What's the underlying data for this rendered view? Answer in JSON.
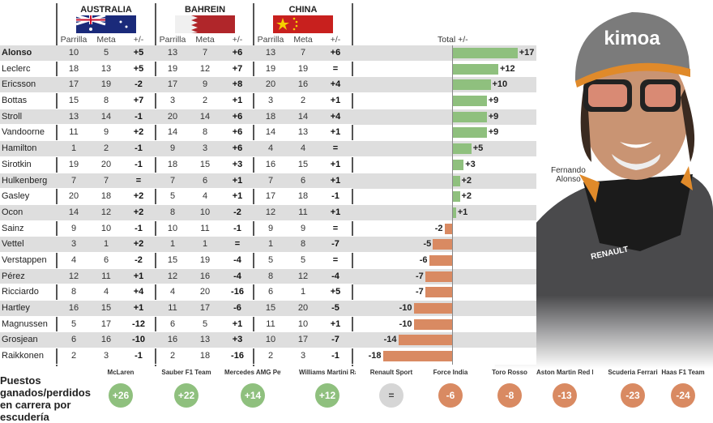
{
  "races": [
    {
      "name": "AUSTRALIA"
    },
    {
      "name": "BAHREIN"
    },
    {
      "name": "CHINA"
    }
  ],
  "subheaders": [
    "Parrilla",
    "Meta",
    "+/-"
  ],
  "total_header": "Total +/-",
  "photo_caption": {
    "line1": "Fernando",
    "line2": "Alonso",
    "cap_text": "kimoa",
    "jacket_text": "RENAULT"
  },
  "colors": {
    "positive": "#8fc07e",
    "negative": "#d98a62",
    "neutral": "#d6d6d6"
  },
  "chart_data": {
    "type": "bar",
    "title": "",
    "xlabel": "",
    "ylabel": "Total +/-",
    "xlim": [
      -18,
      17
    ],
    "drivers": [
      {
        "name": "Alonso",
        "bold": true,
        "aus": [
          "10",
          "5",
          "+5"
        ],
        "bah": [
          "13",
          "7",
          "+6"
        ],
        "chn": [
          "13",
          "7",
          "+6"
        ],
        "total": 17
      },
      {
        "name": "Leclerc",
        "aus": [
          "18",
          "13",
          "+5"
        ],
        "bah": [
          "19",
          "12",
          "+7"
        ],
        "chn": [
          "19",
          "19",
          "="
        ],
        "total": 12
      },
      {
        "name": "Ericsson",
        "aus": [
          "17",
          "19",
          "-2"
        ],
        "bah": [
          "17",
          "9",
          "+8"
        ],
        "chn": [
          "20",
          "16",
          "+4"
        ],
        "total": 10
      },
      {
        "name": "Bottas",
        "aus": [
          "15",
          "8",
          "+7"
        ],
        "bah": [
          "3",
          "2",
          "+1"
        ],
        "chn": [
          "3",
          "2",
          "+1"
        ],
        "total": 9
      },
      {
        "name": "Stroll",
        "aus": [
          "13",
          "14",
          "-1"
        ],
        "bah": [
          "20",
          "14",
          "+6"
        ],
        "chn": [
          "18",
          "14",
          "+4"
        ],
        "total": 9
      },
      {
        "name": "Vandoorne",
        "aus": [
          "11",
          "9",
          "+2"
        ],
        "bah": [
          "14",
          "8",
          "+6"
        ],
        "chn": [
          "14",
          "13",
          "+1"
        ],
        "total": 9
      },
      {
        "name": "Hamilton",
        "aus": [
          "1",
          "2",
          "-1"
        ],
        "bah": [
          "9",
          "3",
          "+6"
        ],
        "chn": [
          "4",
          "4",
          "="
        ],
        "total": 5
      },
      {
        "name": "Sirotkin",
        "aus": [
          "19",
          "20",
          "-1"
        ],
        "bah": [
          "18",
          "15",
          "+3"
        ],
        "chn": [
          "16",
          "15",
          "+1"
        ],
        "total": 3
      },
      {
        "name": "Hulkenberg",
        "aus": [
          "7",
          "7",
          "="
        ],
        "bah": [
          "7",
          "6",
          "+1"
        ],
        "chn": [
          "7",
          "6",
          "+1"
        ],
        "total": 2
      },
      {
        "name": "Gasley",
        "aus": [
          "20",
          "18",
          "+2"
        ],
        "bah": [
          "5",
          "4",
          "+1"
        ],
        "chn": [
          "17",
          "18",
          "-1"
        ],
        "total": 2
      },
      {
        "name": "Ocon",
        "aus": [
          "14",
          "12",
          "+2"
        ],
        "bah": [
          "8",
          "10",
          "-2"
        ],
        "chn": [
          "12",
          "11",
          "+1"
        ],
        "total": 1
      },
      {
        "name": "Sainz",
        "aus": [
          "9",
          "10",
          "-1"
        ],
        "bah": [
          "10",
          "11",
          "-1"
        ],
        "chn": [
          "9",
          "9",
          "="
        ],
        "total": -2
      },
      {
        "name": "Vettel",
        "aus": [
          "3",
          "1",
          "+2"
        ],
        "bah": [
          "1",
          "1",
          "="
        ],
        "chn": [
          "1",
          "8",
          "-7"
        ],
        "total": -5
      },
      {
        "name": "Verstappen",
        "aus": [
          "4",
          "6",
          "-2"
        ],
        "bah": [
          "15",
          "19",
          "-4"
        ],
        "chn": [
          "5",
          "5",
          "="
        ],
        "total": -6
      },
      {
        "name": "Pérez",
        "aus": [
          "12",
          "11",
          "+1"
        ],
        "bah": [
          "12",
          "16",
          "-4"
        ],
        "chn": [
          "8",
          "12",
          "-4"
        ],
        "total": -7
      },
      {
        "name": "Ricciardo",
        "aus": [
          "8",
          "4",
          "+4"
        ],
        "bah": [
          "4",
          "20",
          "-16"
        ],
        "chn": [
          "6",
          "1",
          "+5"
        ],
        "total": -7
      },
      {
        "name": "Hartley",
        "aus": [
          "16",
          "15",
          "+1"
        ],
        "bah": [
          "11",
          "17",
          "-6"
        ],
        "chn": [
          "15",
          "20",
          "-5"
        ],
        "total": -10
      },
      {
        "name": "Magnussen",
        "aus": [
          "5",
          "17",
          "-12"
        ],
        "bah": [
          "6",
          "5",
          "+1"
        ],
        "chn": [
          "11",
          "10",
          "+1"
        ],
        "total": -10
      },
      {
        "name": "Grosjean",
        "aus": [
          "6",
          "16",
          "-10"
        ],
        "bah": [
          "16",
          "13",
          "+3"
        ],
        "chn": [
          "10",
          "17",
          "-7"
        ],
        "total": -14
      },
      {
        "name": "Raikkonen",
        "aus": [
          "2",
          "3",
          "-1"
        ],
        "bah": [
          "2",
          "18",
          "-16"
        ],
        "chn": [
          "2",
          "3",
          "-1"
        ],
        "total": -18
      }
    ]
  },
  "footer": {
    "title": "Puestos ganados/perdidos en carrera por escudería",
    "teams": [
      {
        "logo": "McLaren",
        "value": "+26",
        "sign": 1
      },
      {
        "logo": "Sauber F1 Team",
        "value": "+22",
        "sign": 1
      },
      {
        "logo": "Mercedes AMG Petronas",
        "value": "+14",
        "sign": 1
      },
      {
        "logo": "Williams Martini Racing",
        "value": "+12",
        "sign": 1
      },
      {
        "logo": "Renault Sport",
        "value": "=",
        "sign": 0
      },
      {
        "logo": "Force India",
        "value": "-6",
        "sign": -1
      },
      {
        "logo": "Toro Rosso",
        "value": "-8",
        "sign": -1
      },
      {
        "logo": "Aston Martin Red Bull Racing",
        "value": "-13",
        "sign": -1
      },
      {
        "logo": "Scuderia Ferrari",
        "value": "-23",
        "sign": -1
      },
      {
        "logo": "Haas F1 Team",
        "value": "-24",
        "sign": -1
      }
    ]
  }
}
